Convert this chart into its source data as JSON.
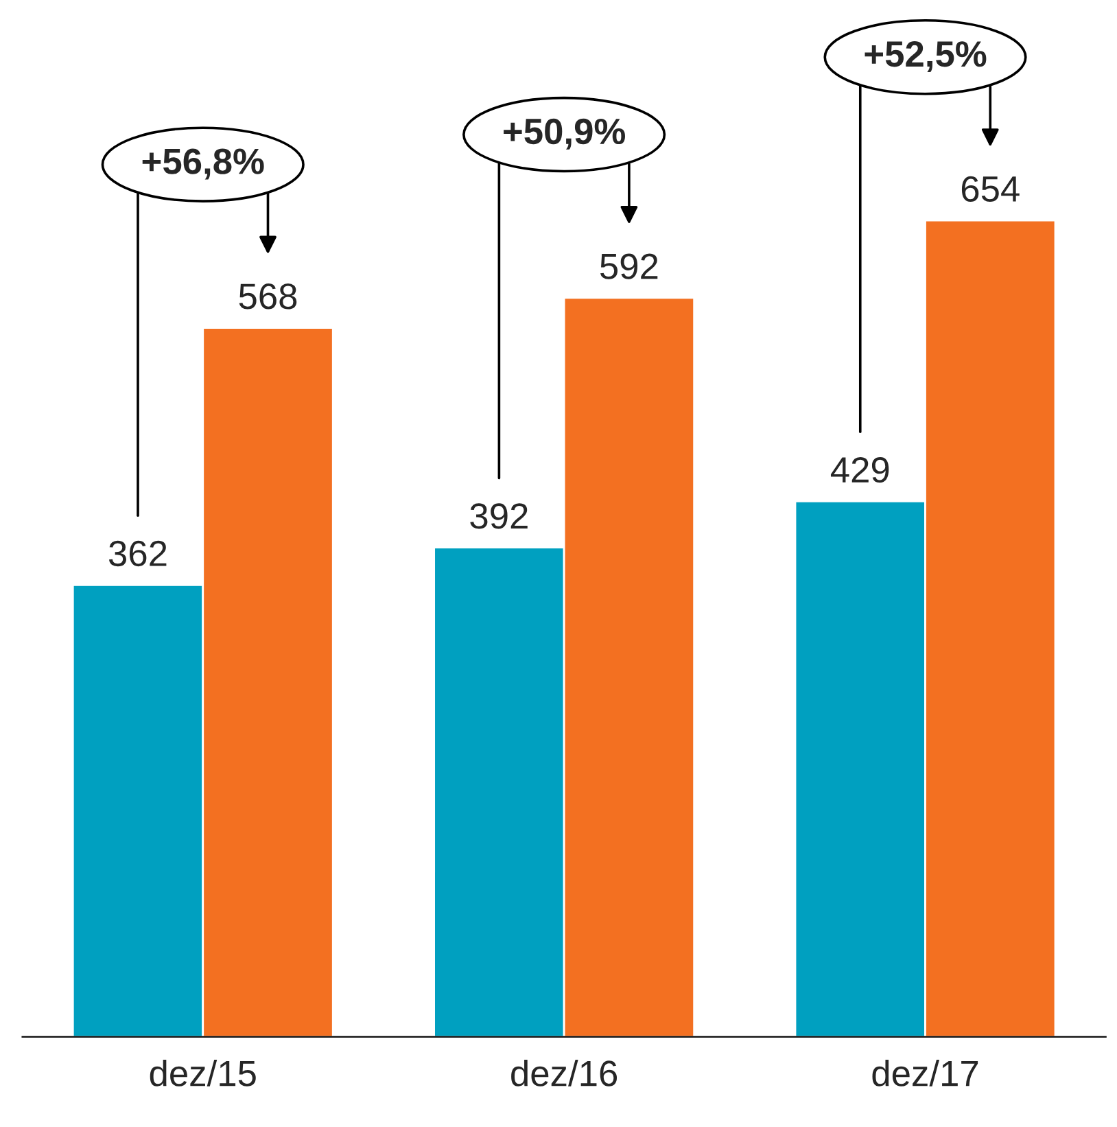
{
  "chart_data": {
    "type": "bar",
    "categories": [
      "dez/15",
      "dez/16",
      "dez/17"
    ],
    "series": [
      {
        "color": "#00a0c0",
        "values": [
          362,
          392,
          429
        ]
      },
      {
        "color": "#f37021",
        "values": [
          568,
          592,
          654
        ]
      }
    ],
    "data_labels": true,
    "grid": false,
    "legend": false,
    "tick_labels": "x",
    "annotations": [
      "+56,8%",
      "+50,9%",
      "+52,5%"
    ]
  }
}
